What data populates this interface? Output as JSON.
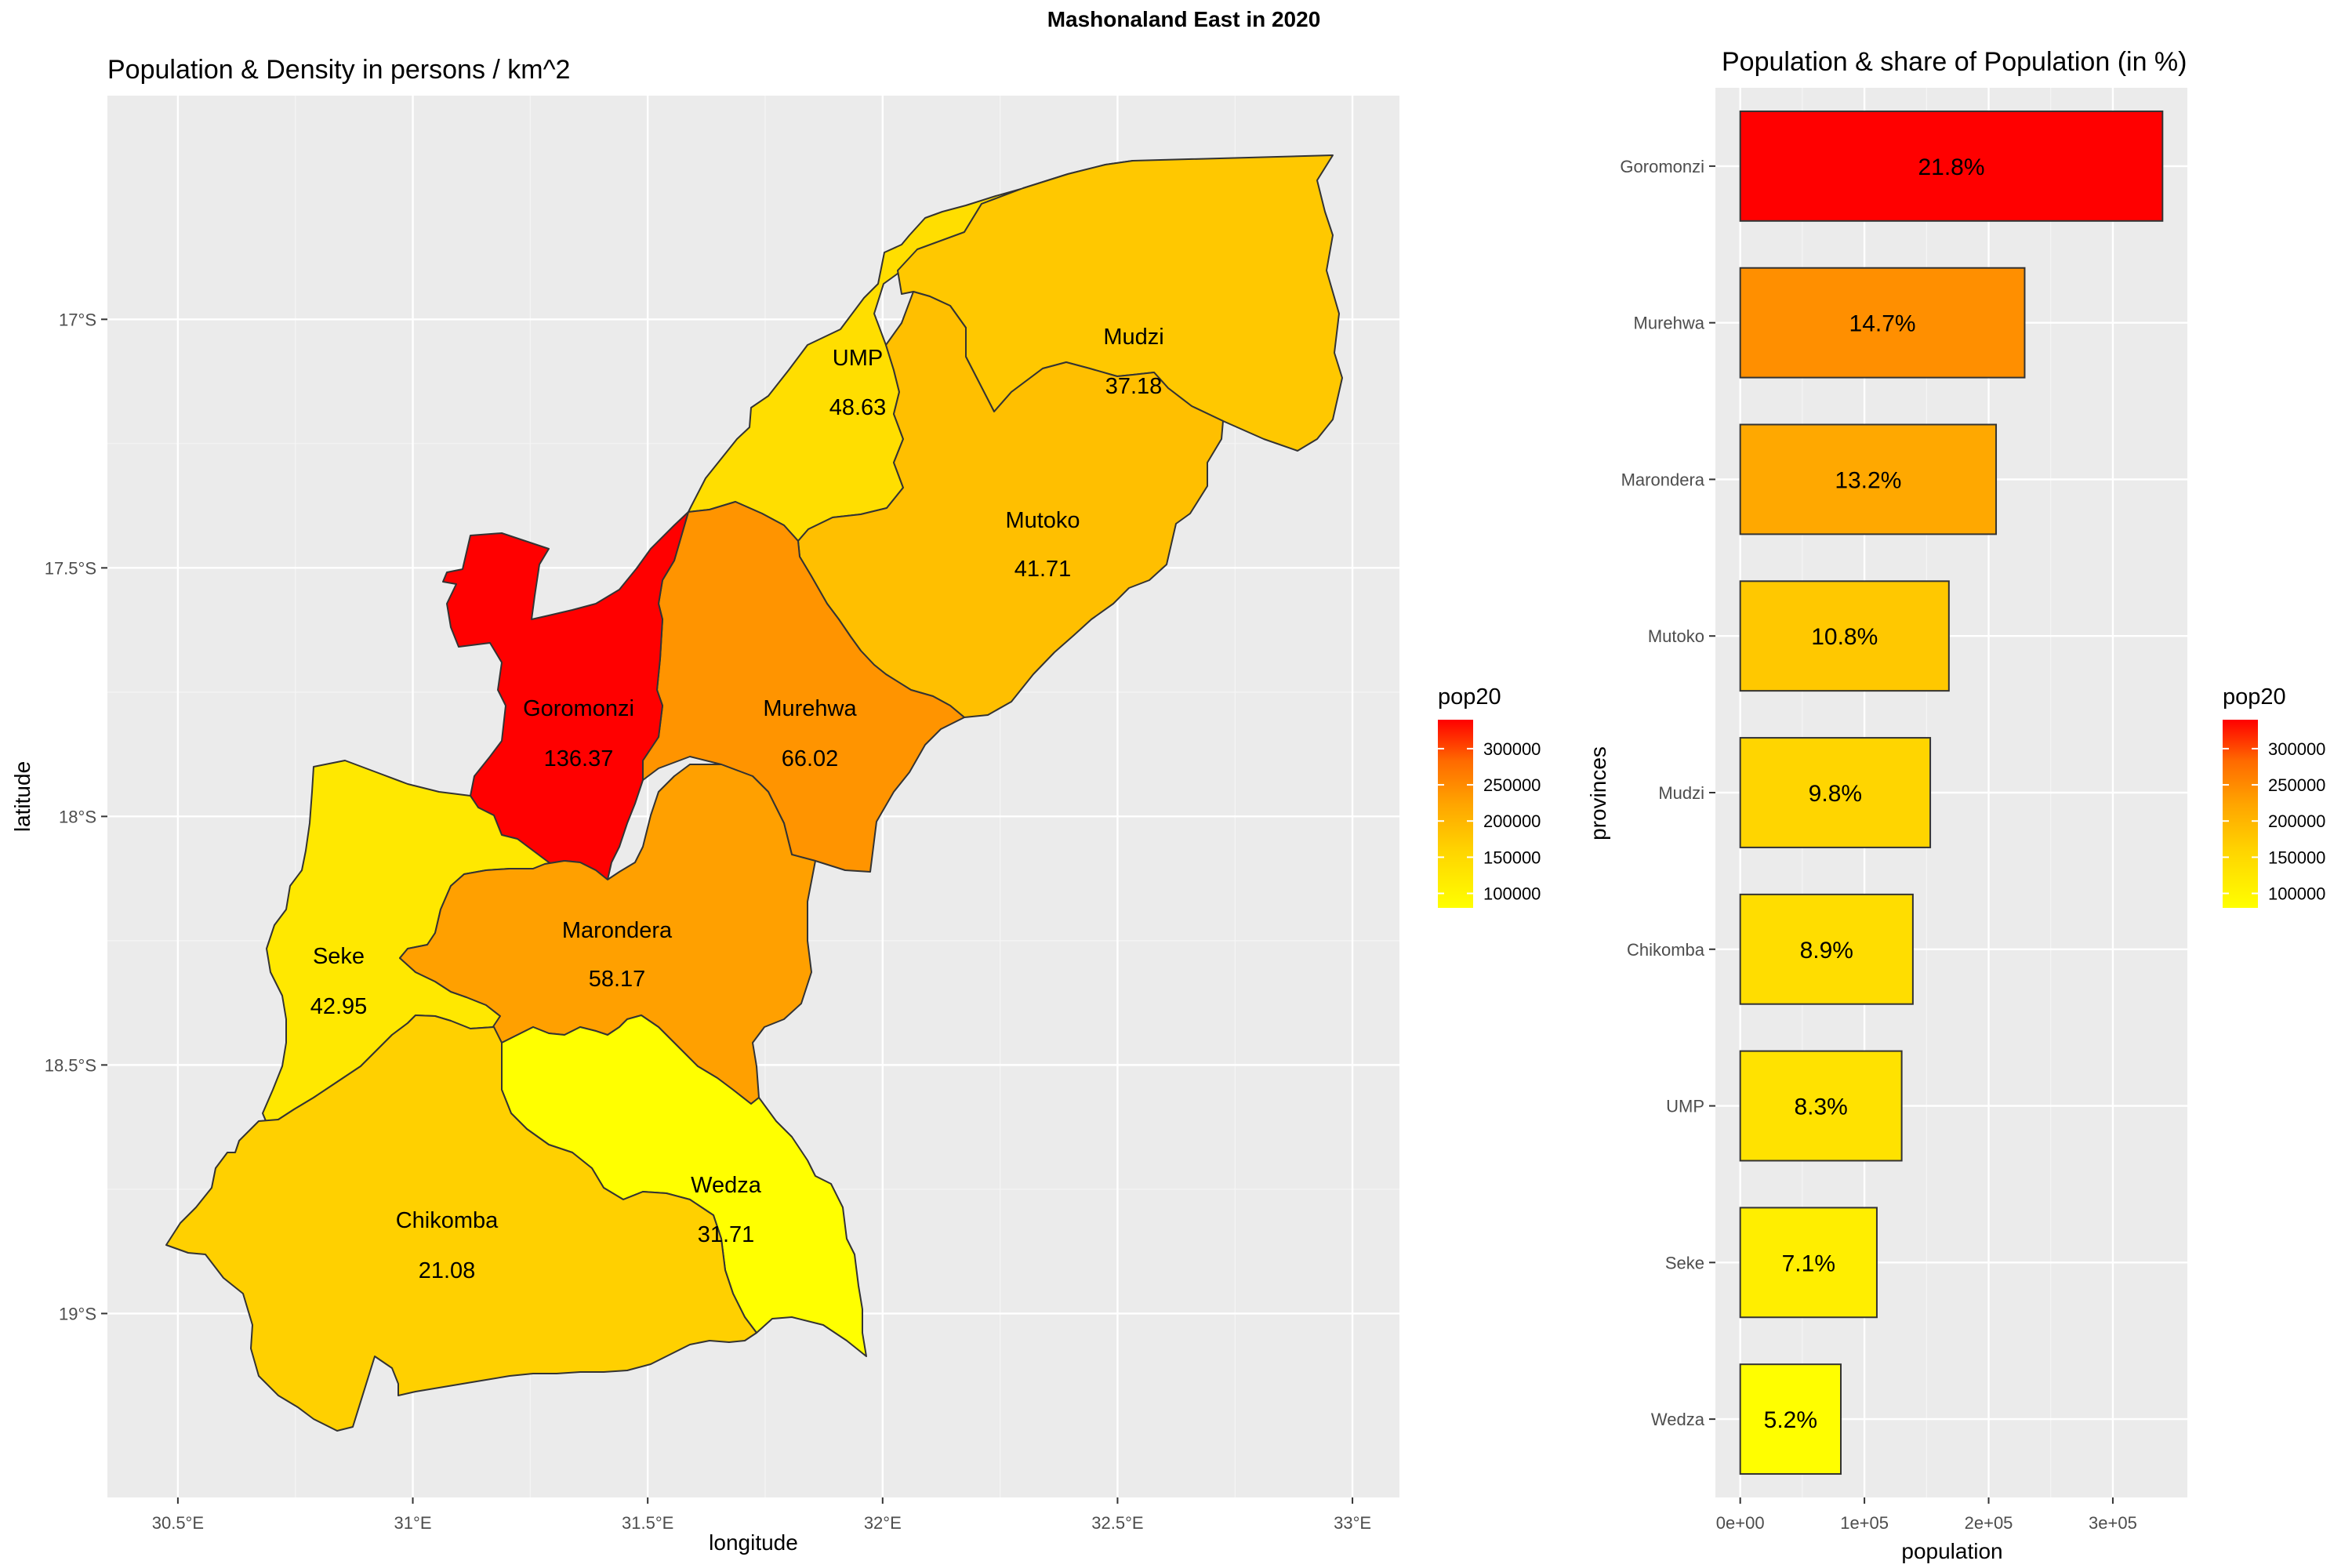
{
  "figure": {
    "suptitle": "Mashonaland East in 2020"
  },
  "colors": {
    "panel_bg": "#ebebeb",
    "grid": "#ffffff",
    "border": "#333333",
    "gradient": [
      "#ffff00",
      "#ffd700",
      "#ffa500",
      "#ff8c00",
      "#ff4500",
      "#ff0000"
    ]
  },
  "chart_data": [
    {
      "type": "map",
      "title": "Population & Density in persons / km^2",
      "xlabel": "longitude",
      "ylabel": "latitude",
      "x_ticks": [
        "30.5°E",
        "31°E",
        "31.5°E",
        "32°E",
        "32.5°E",
        "33°E"
      ],
      "y_ticks": [
        "17°S",
        "17.5°S",
        "18°S",
        "18.5°S",
        "19°S"
      ],
      "xlim": [
        30.35,
        33.1
      ],
      "ylim": [
        -19.37,
        -16.55
      ],
      "regions": [
        {
          "name": "Goromonzi",
          "density": "136.37",
          "pop20": 340000
        },
        {
          "name": "Murehwa",
          "density": "66.02",
          "pop20": 229000
        },
        {
          "name": "Marondera",
          "density": "58.17",
          "pop20": 206000
        },
        {
          "name": "Mutoko",
          "density": "41.71",
          "pop20": 168000
        },
        {
          "name": "Mudzi",
          "density": "37.18",
          "pop20": 153000
        },
        {
          "name": "Chikomba",
          "density": "21.08",
          "pop20": 139000
        },
        {
          "name": "UMP",
          "density": "48.63",
          "pop20": 130000
        },
        {
          "name": "Seke",
          "density": "42.95",
          "pop20": 110000
        },
        {
          "name": "Wedza",
          "density": "31.71",
          "pop20": 81000
        }
      ],
      "legend": {
        "title": "pop20",
        "ticks": [
          "300000",
          "250000",
          "200000",
          "150000",
          "100000"
        ],
        "position": "right"
      }
    },
    {
      "type": "bar",
      "orientation": "horizontal",
      "title": "Population & share of Population (in %)",
      "xlabel": "population",
      "ylabel": "provinces",
      "categories": [
        "Goromonzi",
        "Murehwa",
        "Marondera",
        "Mutoko",
        "Mudzi",
        "Chikomba",
        "UMP",
        "Seke",
        "Wedza"
      ],
      "values": [
        340000,
        229000,
        206000,
        168000,
        153000,
        139000,
        130000,
        110000,
        81000
      ],
      "labels": [
        "21.8%",
        "14.7%",
        "13.2%",
        "10.8%",
        "9.8%",
        "8.9%",
        "8.3%",
        "7.1%",
        "5.2%"
      ],
      "x_ticks": [
        "0e+00",
        "1e+05",
        "2e+05",
        "3e+05"
      ],
      "xlim": [
        -20000,
        360000
      ],
      "legend": {
        "title": "pop20",
        "ticks": [
          "300000",
          "250000",
          "200000",
          "150000",
          "100000"
        ],
        "position": "right"
      }
    }
  ]
}
